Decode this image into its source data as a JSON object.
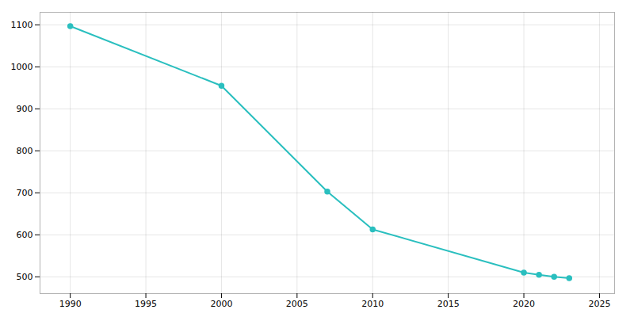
{
  "chart_data": {
    "type": "line",
    "x": [
      1990,
      2000,
      2007,
      2010,
      2020,
      2021,
      2022,
      2023
    ],
    "values": [
      1097,
      955,
      703,
      613,
      510,
      505,
      500,
      497
    ],
    "color": "#2abfbf",
    "marker": "circle",
    "xlim": [
      1988,
      2026
    ],
    "ylim": [
      460,
      1130
    ],
    "xticks": [
      1990,
      1995,
      2000,
      2005,
      2010,
      2015,
      2020,
      2025
    ],
    "yticks": [
      500,
      600,
      700,
      800,
      900,
      1000,
      1100
    ],
    "grid": true
  }
}
